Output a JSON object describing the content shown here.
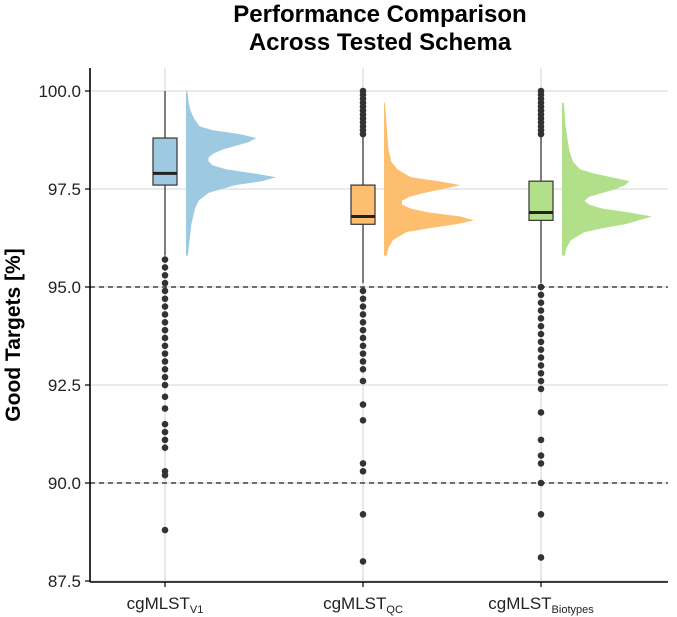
{
  "chart_data": {
    "type": "raincloud",
    "title": [
      "Performance Comparison",
      "Across Tested Schema"
    ],
    "ylabel": "Good Targets [%]",
    "xlabel": "",
    "ylim": [
      87.5,
      100.0
    ],
    "yticks": [
      87.5,
      90.0,
      92.5,
      95.0,
      97.5,
      100.0
    ],
    "ytick_labels": [
      "87.5",
      "90.0",
      "92.5",
      "95.0",
      "97.5",
      "100.0"
    ],
    "reference_lines": [
      95.0,
      90.0
    ],
    "grid": true,
    "categories": [
      {
        "name": "cgMLST",
        "subscript": "V1"
      },
      {
        "name": "cgMLST",
        "subscript": "QC"
      },
      {
        "name": "cgMLST",
        "subscript": "Biotypes"
      }
    ],
    "series": [
      {
        "name": "cgMLST V1",
        "color": "#9ecae1",
        "box": {
          "q1": 97.6,
          "median": 97.9,
          "q3": 98.8,
          "whisker_low": 95.8,
          "whisker_high": 100.0
        },
        "outliers": [
          95.7,
          95.5,
          95.3,
          95.1,
          94.9,
          94.7,
          94.5,
          94.3,
          94.1,
          93.9,
          93.7,
          93.5,
          93.3,
          93.1,
          92.9,
          92.7,
          92.5,
          92.2,
          91.9,
          91.5,
          91.3,
          91.1,
          90.9,
          90.3,
          90.2,
          88.8
        ],
        "density": [
          [
            95.8,
            0.02
          ],
          [
            96.0,
            0.03
          ],
          [
            96.2,
            0.04
          ],
          [
            96.4,
            0.05
          ],
          [
            96.6,
            0.06
          ],
          [
            96.8,
            0.08
          ],
          [
            97.0,
            0.1
          ],
          [
            97.2,
            0.14
          ],
          [
            97.4,
            0.25
          ],
          [
            97.6,
            0.55
          ],
          [
            97.7,
            0.85
          ],
          [
            97.8,
            1.0
          ],
          [
            97.9,
            0.75
          ],
          [
            98.0,
            0.45
          ],
          [
            98.1,
            0.3
          ],
          [
            98.2,
            0.25
          ],
          [
            98.3,
            0.25
          ],
          [
            98.4,
            0.3
          ],
          [
            98.5,
            0.4
          ],
          [
            98.6,
            0.55
          ],
          [
            98.7,
            0.7
          ],
          [
            98.8,
            0.78
          ],
          [
            98.9,
            0.6
          ],
          [
            99.0,
            0.3
          ],
          [
            99.1,
            0.15
          ],
          [
            99.3,
            0.09
          ],
          [
            99.5,
            0.05
          ],
          [
            99.7,
            0.03
          ],
          [
            99.9,
            0.02
          ],
          [
            100.0,
            0.01
          ]
        ]
      },
      {
        "name": "cgMLST QC",
        "color": "#fdbf6f",
        "box": {
          "q1": 96.6,
          "median": 96.8,
          "q3": 97.6,
          "whisker_low": 95.1,
          "whisker_high": 98.9
        },
        "outliers": [
          100.0,
          99.9,
          99.8,
          99.7,
          99.6,
          99.5,
          99.4,
          99.3,
          99.2,
          99.1,
          99.0,
          98.9,
          94.9,
          94.7,
          94.5,
          94.3,
          94.1,
          93.9,
          93.7,
          93.5,
          93.3,
          93.1,
          92.9,
          92.6,
          92.0,
          91.6,
          90.5,
          90.3,
          89.2,
          88.0
        ],
        "density": [
          [
            95.8,
            0.03
          ],
          [
            96.0,
            0.05
          ],
          [
            96.2,
            0.1
          ],
          [
            96.4,
            0.25
          ],
          [
            96.5,
            0.5
          ],
          [
            96.6,
            0.8
          ],
          [
            96.7,
            1.0
          ],
          [
            96.8,
            0.85
          ],
          [
            96.9,
            0.5
          ],
          [
            97.0,
            0.3
          ],
          [
            97.1,
            0.2
          ],
          [
            97.2,
            0.2
          ],
          [
            97.3,
            0.28
          ],
          [
            97.4,
            0.45
          ],
          [
            97.5,
            0.65
          ],
          [
            97.6,
            0.85
          ],
          [
            97.7,
            0.6
          ],
          [
            97.8,
            0.3
          ],
          [
            98.0,
            0.15
          ],
          [
            98.2,
            0.08
          ],
          [
            98.5,
            0.05
          ],
          [
            98.8,
            0.04
          ],
          [
            99.1,
            0.03
          ],
          [
            99.4,
            0.02
          ],
          [
            99.7,
            0.01
          ]
        ]
      },
      {
        "name": "cgMLST Biotypes",
        "color": "#b2df8a",
        "box": {
          "q1": 96.7,
          "median": 96.9,
          "q3": 97.7,
          "whisker_low": 95.1,
          "whisker_high": 98.9
        },
        "outliers": [
          100.0,
          99.9,
          99.8,
          99.7,
          99.6,
          99.5,
          99.4,
          99.3,
          99.2,
          99.1,
          99.0,
          98.9,
          95.0,
          94.8,
          94.6,
          94.4,
          94.2,
          94.0,
          93.8,
          93.6,
          93.4,
          93.2,
          93.0,
          92.8,
          92.6,
          92.4,
          91.8,
          91.1,
          90.7,
          90.5,
          90.0,
          89.2,
          88.1
        ],
        "density": [
          [
            95.8,
            0.03
          ],
          [
            96.0,
            0.05
          ],
          [
            96.2,
            0.1
          ],
          [
            96.4,
            0.25
          ],
          [
            96.5,
            0.45
          ],
          [
            96.6,
            0.7
          ],
          [
            96.7,
            0.85
          ],
          [
            96.8,
            1.0
          ],
          [
            96.9,
            0.75
          ],
          [
            97.0,
            0.45
          ],
          [
            97.1,
            0.3
          ],
          [
            97.2,
            0.25
          ],
          [
            97.3,
            0.3
          ],
          [
            97.4,
            0.45
          ],
          [
            97.5,
            0.6
          ],
          [
            97.6,
            0.7
          ],
          [
            97.7,
            0.75
          ],
          [
            97.8,
            0.55
          ],
          [
            97.9,
            0.35
          ],
          [
            98.0,
            0.2
          ],
          [
            98.2,
            0.12
          ],
          [
            98.5,
            0.08
          ],
          [
            98.8,
            0.06
          ],
          [
            99.1,
            0.04
          ],
          [
            99.4,
            0.03
          ],
          [
            99.7,
            0.02
          ]
        ]
      }
    ]
  }
}
